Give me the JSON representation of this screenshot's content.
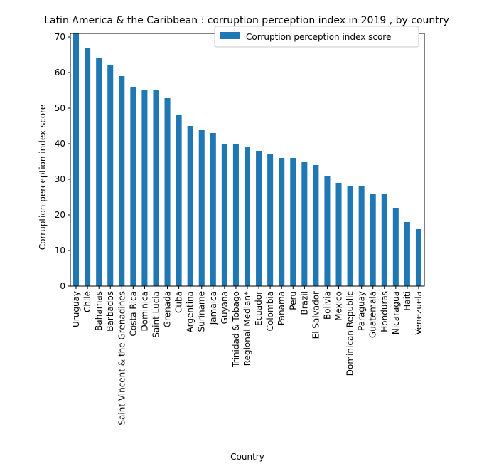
{
  "chart_data": {
    "type": "bar",
    "title": "Latin America & the Caribbean : corruption perception index in 2019 , by country",
    "xlabel": "Country",
    "ylabel": "Corruption perception index score",
    "ylim": [
      0,
      71
    ],
    "yticks": [
      0,
      10,
      20,
      30,
      40,
      50,
      60,
      70
    ],
    "grid": false,
    "legend_position": "top-right",
    "bar_color": "#1f77b4",
    "categories": [
      "Uruguay",
      "Chile",
      "Bahamas",
      "Barbados",
      "Saint Vincent & the Grenadines",
      "Costa Rica",
      "Dominica",
      "Saint Lucia",
      "Grenada",
      "Cuba",
      "Argentina",
      "Suriname",
      "Jamaica",
      "Guyana",
      "Trinidad & Tobago",
      "Regional Median*",
      "Ecuador",
      "Colombia",
      "Panama",
      "Peru",
      "Brazil",
      "El Salvador",
      "Bolivia",
      "Mexico",
      "Dominican Republic",
      "Paraguay",
      "Guatemala",
      "Honduras",
      "Nicaragua",
      "Haiti",
      "Venezuela"
    ],
    "series": [
      {
        "name": "Corruption perception index score",
        "values": [
          71,
          67,
          64,
          62,
          59,
          56,
          55,
          55,
          53,
          48,
          45,
          44,
          43,
          40,
          40,
          39,
          38,
          37,
          36,
          36,
          35,
          34,
          31,
          29,
          28,
          28,
          26,
          26,
          22,
          18,
          16
        ]
      }
    ]
  }
}
